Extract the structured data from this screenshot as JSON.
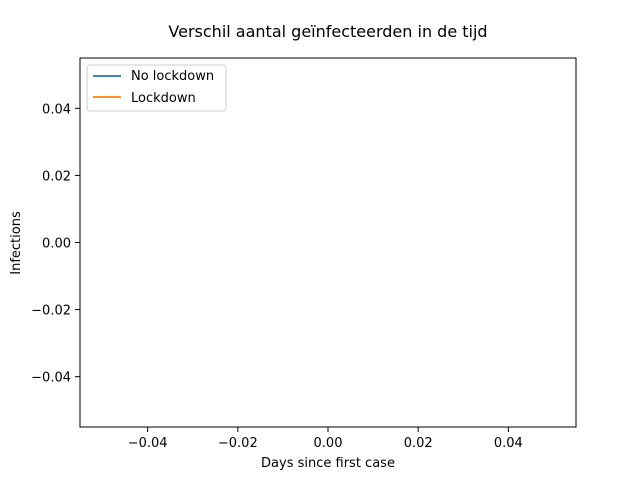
{
  "chart_data": {
    "type": "line",
    "title": "Verschil aantal geïnfecteerden in de tijd",
    "xlabel": "Days since first case",
    "ylabel": "Infections",
    "xlim": [
      -0.055,
      0.055
    ],
    "ylim": [
      -0.055,
      0.055
    ],
    "xticks": [
      -0.04,
      -0.02,
      0.0,
      0.02,
      0.04
    ],
    "xtick_labels": [
      "−0.04",
      "−0.02",
      "0.00",
      "0.02",
      "0.04"
    ],
    "yticks": [
      0.04,
      0.02,
      0.0,
      -0.02,
      -0.04
    ],
    "ytick_labels": [
      "0.04",
      "0.02",
      "0.00",
      "−0.02",
      "−0.04"
    ],
    "grid": false,
    "legend_position": "upper-left",
    "series": [
      {
        "name": "No lockdown",
        "color": "#1f77b4",
        "x": [],
        "y": []
      },
      {
        "name": "Lockdown",
        "color": "#ff7f0e",
        "x": [],
        "y": []
      }
    ]
  }
}
